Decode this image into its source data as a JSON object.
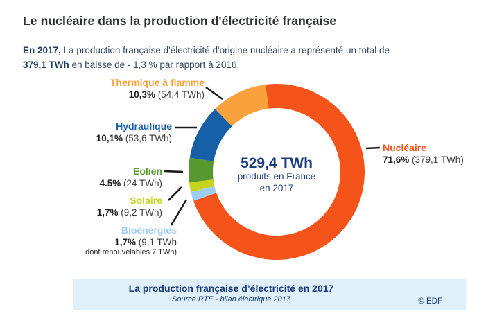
{
  "page": {
    "title": "Le nucléaire dans la production d'électricité française",
    "intro": {
      "bold1": "En 2017,",
      "text1": " La production française d'électricité d'origine nucléaire a représenté un total de",
      "bold2": "379,1 TWh",
      "text2": " en baisse de - 1,3 % par rapport à 2016."
    }
  },
  "chart_data": {
    "type": "pie",
    "subtype": "donut",
    "title": "La production française d'électricité en 2017",
    "unit": "TWh",
    "total_twh": 529.4,
    "start_angle_deg": -7.2,
    "center_label": {
      "value": "529,4 TWh",
      "line1": "produits en France",
      "line2": "en 2017"
    },
    "segments": [
      {
        "name": "Nucléaire",
        "pct": 71.6,
        "twh": 379.1,
        "pct_label": "71,6%",
        "detail": " (379,1 TWh)",
        "color": "#F4531A"
      },
      {
        "name": "Bioénergies",
        "pct": 1.7,
        "twh": 9.1,
        "pct_label": "1,7%",
        "detail": " (9,1 TWh",
        "note": "dont renouvelables 7 TWh)",
        "color": "#9CCEF4"
      },
      {
        "name": "Solaire",
        "pct": 1.7,
        "twh": 9.2,
        "pct_label": "1,7%",
        "detail": " (9,2 TWh)",
        "color": "#C6D31F"
      },
      {
        "name": "Eolien",
        "pct": 4.5,
        "twh": 24,
        "pct_label": "4.5%",
        "detail": " (24 TWh)",
        "color": "#57992E"
      },
      {
        "name": "Hydraulique",
        "pct": 10.1,
        "twh": 53.6,
        "pct_label": "10,1%",
        "detail": " (53,6 TWh)",
        "color": "#1660A8"
      },
      {
        "name": "Thermique à flamme",
        "pct": 10.3,
        "twh": 54.4,
        "pct_label": "10,3%",
        "detail": " (54,4 TWh)",
        "color": "#F9A13D"
      }
    ]
  },
  "footer": {
    "title": "La production française d’électricité en 2017",
    "source": "Source RTE - bilan électrique 2017",
    "credit": "© EDF"
  }
}
